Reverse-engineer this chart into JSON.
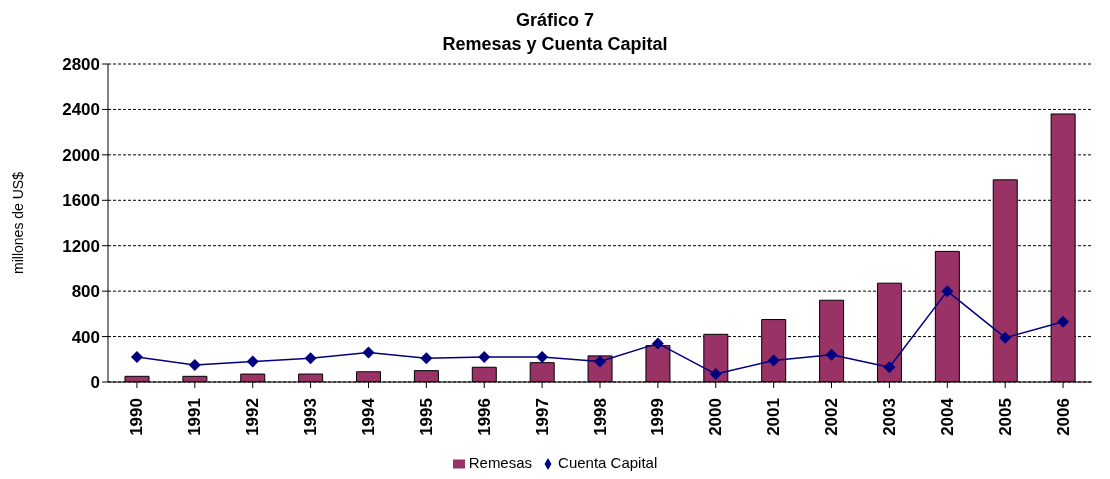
{
  "chart_data": {
    "type": "bar",
    "title": "Gráfico 7",
    "subtitle": "Remesas y Cuenta Capital",
    "ylabel": "millones de US$",
    "categories": [
      "1990",
      "1991",
      "1992",
      "1993",
      "1994",
      "1995",
      "1996",
      "1997",
      "1998",
      "1999",
      "2000",
      "2001",
      "2002",
      "2003",
      "2004",
      "2005",
      "2006"
    ],
    "series": [
      {
        "name": "Remesas",
        "color": "#993366",
        "values": [
          50,
          50,
          70,
          70,
          90,
          100,
          130,
          170,
          230,
          320,
          420,
          550,
          720,
          870,
          1150,
          1780,
          2360
        ]
      },
      {
        "name": "Cuenta Capital",
        "type": "line",
        "color": "#000080",
        "marker": "diamond",
        "values": [
          220,
          150,
          180,
          210,
          260,
          210,
          220,
          220,
          180,
          340,
          70,
          190,
          240,
          130,
          800,
          390,
          530
        ]
      }
    ],
    "ylim": [
      0,
      2800
    ],
    "yticks": [
      0,
      400,
      800,
      1200,
      1600,
      2000,
      2400,
      2800
    ],
    "grid": "y",
    "legend": "bottom"
  }
}
